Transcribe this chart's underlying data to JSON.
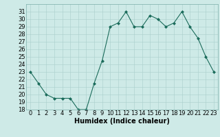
{
  "x": [
    0,
    1,
    2,
    3,
    4,
    5,
    6,
    7,
    8,
    9,
    10,
    11,
    12,
    13,
    14,
    15,
    16,
    17,
    18,
    19,
    20,
    21,
    22,
    23
  ],
  "y": [
    23,
    21.5,
    20,
    19.5,
    19.5,
    19.5,
    18,
    18,
    21.5,
    24.5,
    29,
    29.5,
    31,
    29,
    29,
    30.5,
    30,
    29,
    29.5,
    31,
    29,
    27.5,
    25,
    23
  ],
  "line_color": "#1a6b5a",
  "marker": "D",
  "marker_size": 2.0,
  "bg_color": "#ceeae7",
  "grid_color": "#aacfcc",
  "xlabel": "Humidex (Indice chaleur)",
  "xlabel_fontsize": 7,
  "tick_fontsize": 6,
  "xlim": [
    -0.5,
    23.5
  ],
  "ylim": [
    18,
    32
  ],
  "yticks": [
    18,
    19,
    20,
    21,
    22,
    23,
    24,
    25,
    26,
    27,
    28,
    29,
    30,
    31
  ],
  "xticks": [
    0,
    1,
    2,
    3,
    4,
    5,
    6,
    7,
    8,
    9,
    10,
    11,
    12,
    13,
    14,
    15,
    16,
    17,
    18,
    19,
    20,
    21,
    22,
    23
  ]
}
